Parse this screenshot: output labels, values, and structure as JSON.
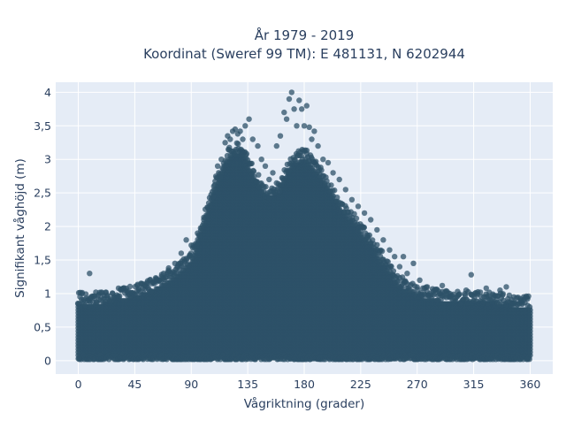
{
  "chart_data": {
    "type": "scatter",
    "title_lines": [
      "År 1979 - 2019",
      "Koordinat (Sweref 99 TM): E 481131, N 6202944"
    ],
    "xlabel": "Vågriktning (grader)",
    "ylabel": "Signifikant våghöjd (m)",
    "xlim": [
      -18,
      378
    ],
    "ylim": [
      -0.2,
      4.15
    ],
    "x_ticks": [
      0,
      45,
      90,
      135,
      180,
      225,
      270,
      315,
      360
    ],
    "x_tick_labels": [
      "0",
      "45",
      "90",
      "135",
      "180",
      "225",
      "270",
      "315",
      "360"
    ],
    "y_ticks": [
      0,
      0.5,
      1,
      1.5,
      2,
      2.5,
      3,
      3.5,
      4
    ],
    "y_tick_labels": [
      "0",
      "0,5",
      "1",
      "1,5",
      "2",
      "2,5",
      "3",
      "3,5",
      "4"
    ],
    "grid": true,
    "marker_color": "#2e5168",
    "plot_bg": "#e5ecf6",
    "dense_envelope": {
      "x": [
        0,
        10,
        20,
        30,
        45,
        60,
        75,
        90,
        100,
        110,
        120,
        130,
        140,
        150,
        160,
        170,
        180,
        190,
        200,
        210,
        225,
        240,
        255,
        270,
        285,
        300,
        315,
        330,
        345,
        360
      ],
      "y_top": [
        0.85,
        0.8,
        0.85,
        0.9,
        0.95,
        1.05,
        1.2,
        1.45,
        2.0,
        2.6,
        3.0,
        3.1,
        2.7,
        2.4,
        2.5,
        2.9,
        3.0,
        2.8,
        2.5,
        2.2,
        1.9,
        1.5,
        1.1,
        0.95,
        0.9,
        0.85,
        0.85,
        0.85,
        0.8,
        0.8
      ],
      "y_bottom": [
        0.08,
        0.08,
        0.08,
        0.08,
        0.08,
        0.08,
        0.08,
        0.08,
        0.08,
        0.08,
        0.08,
        0.08,
        0.08,
        0.08,
        0.08,
        0.08,
        0.08,
        0.08,
        0.08,
        0.08,
        0.08,
        0.08,
        0.08,
        0.08,
        0.08,
        0.08,
        0.08,
        0.08,
        0.08,
        0.08
      ]
    },
    "outlier_points": [
      {
        "x": 9,
        "y": 1.3
      },
      {
        "x": 3,
        "y": 1.0
      },
      {
        "x": 14,
        "y": 1.02
      },
      {
        "x": 22,
        "y": 1.02
      },
      {
        "x": 32,
        "y": 1.08
      },
      {
        "x": 40,
        "y": 1.03
      },
      {
        "x": 47,
        "y": 1.12
      },
      {
        "x": 55,
        "y": 1.15
      },
      {
        "x": 62,
        "y": 1.22
      },
      {
        "x": 68,
        "y": 1.3
      },
      {
        "x": 72,
        "y": 1.38
      },
      {
        "x": 77,
        "y": 1.45
      },
      {
        "x": 82,
        "y": 1.6
      },
      {
        "x": 86,
        "y": 1.8
      },
      {
        "x": 90,
        "y": 1.72
      },
      {
        "x": 95,
        "y": 1.9
      },
      {
        "x": 100,
        "y": 2.1
      },
      {
        "x": 104,
        "y": 2.35
      },
      {
        "x": 108,
        "y": 2.6
      },
      {
        "x": 111,
        "y": 2.9
      },
      {
        "x": 114,
        "y": 3.0
      },
      {
        "x": 117,
        "y": 3.25
      },
      {
        "x": 119,
        "y": 3.35
      },
      {
        "x": 121,
        "y": 3.3
      },
      {
        "x": 123,
        "y": 3.42
      },
      {
        "x": 125,
        "y": 3.45
      },
      {
        "x": 127,
        "y": 3.38
      },
      {
        "x": 129,
        "y": 3.42
      },
      {
        "x": 131,
        "y": 3.3
      },
      {
        "x": 133,
        "y": 3.5
      },
      {
        "x": 136,
        "y": 3.6
      },
      {
        "x": 139,
        "y": 3.3
      },
      {
        "x": 143,
        "y": 3.2
      },
      {
        "x": 146,
        "y": 3.0
      },
      {
        "x": 149,
        "y": 2.9
      },
      {
        "x": 152,
        "y": 2.7
      },
      {
        "x": 155,
        "y": 2.8
      },
      {
        "x": 158,
        "y": 3.2
      },
      {
        "x": 161,
        "y": 3.35
      },
      {
        "x": 164,
        "y": 3.7
      },
      {
        "x": 166,
        "y": 3.6
      },
      {
        "x": 168,
        "y": 3.9
      },
      {
        "x": 170,
        "y": 4.0
      },
      {
        "x": 172,
        "y": 3.75
      },
      {
        "x": 174,
        "y": 3.5
      },
      {
        "x": 176,
        "y": 3.88
      },
      {
        "x": 178,
        "y": 3.75
      },
      {
        "x": 180,
        "y": 3.5
      },
      {
        "x": 182,
        "y": 3.8
      },
      {
        "x": 184,
        "y": 3.48
      },
      {
        "x": 186,
        "y": 3.3
      },
      {
        "x": 188,
        "y": 3.42
      },
      {
        "x": 191,
        "y": 3.2
      },
      {
        "x": 195,
        "y": 3.0
      },
      {
        "x": 199,
        "y": 2.95
      },
      {
        "x": 203,
        "y": 2.8
      },
      {
        "x": 208,
        "y": 2.7
      },
      {
        "x": 213,
        "y": 2.55
      },
      {
        "x": 218,
        "y": 2.4
      },
      {
        "x": 223,
        "y": 2.3
      },
      {
        "x": 228,
        "y": 2.2
      },
      {
        "x": 233,
        "y": 2.1
      },
      {
        "x": 238,
        "y": 1.95
      },
      {
        "x": 243,
        "y": 1.8
      },
      {
        "x": 248,
        "y": 1.65
      },
      {
        "x": 252,
        "y": 1.55
      },
      {
        "x": 256,
        "y": 1.4
      },
      {
        "x": 259,
        "y": 1.55
      },
      {
        "x": 262,
        "y": 1.3
      },
      {
        "x": 267,
        "y": 1.45
      },
      {
        "x": 272,
        "y": 1.2
      },
      {
        "x": 278,
        "y": 1.1
      },
      {
        "x": 284,
        "y": 1.05
      },
      {
        "x": 290,
        "y": 1.12
      },
      {
        "x": 296,
        "y": 1.0
      },
      {
        "x": 303,
        "y": 0.98
      },
      {
        "x": 309,
        "y": 1.05
      },
      {
        "x": 313,
        "y": 1.28
      },
      {
        "x": 318,
        "y": 1.0
      },
      {
        "x": 325,
        "y": 1.08
      },
      {
        "x": 331,
        "y": 0.95
      },
      {
        "x": 336,
        "y": 1.05
      },
      {
        "x": 341,
        "y": 1.1
      },
      {
        "x": 347,
        "y": 0.95
      },
      {
        "x": 353,
        "y": 0.9
      },
      {
        "x": 358,
        "y": 0.92
      }
    ]
  }
}
